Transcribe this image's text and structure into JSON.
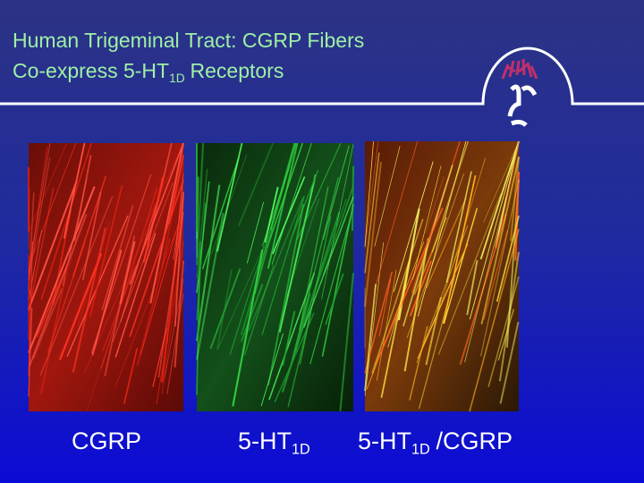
{
  "header": {
    "title_line1": "Human Trigeminal Tract: CGRP Fibers",
    "title_line2": {
      "main": "Co-express 5-HT",
      "sub": "1D",
      "after": "Receptors"
    }
  },
  "panels": [
    {
      "label": {
        "main": "CGRP"
      }
    },
    {
      "label": {
        "main": "5-HT",
        "sub": "1D"
      }
    },
    {
      "label": {
        "main": "5-HT",
        "sub": "1D",
        "after": "/CGRP"
      }
    }
  ]
}
